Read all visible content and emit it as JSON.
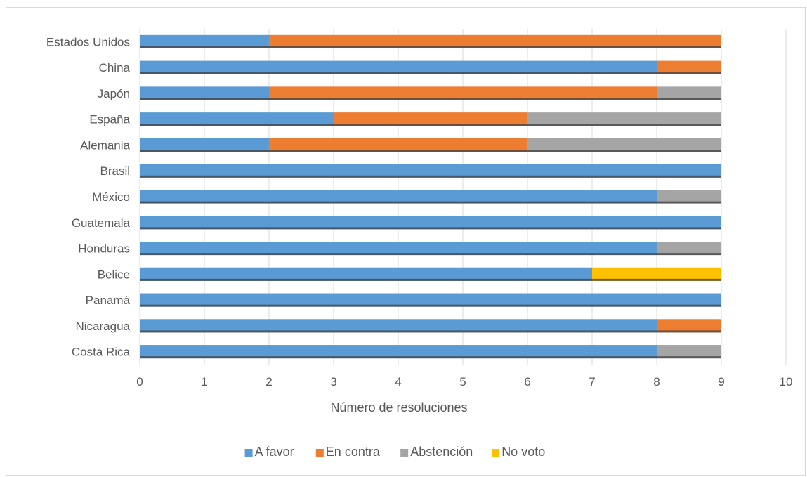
{
  "chart_data": {
    "type": "bar",
    "orientation": "horizontal",
    "stacked": true,
    "title": "",
    "xlabel": "Número de resoluciones",
    "ylabel": "",
    "xlim": [
      0,
      10
    ],
    "xticks": [
      0,
      1,
      2,
      3,
      4,
      5,
      6,
      7,
      8,
      9,
      10
    ],
    "grid": true,
    "legend_position": "bottom",
    "categories": [
      "Costa Rica",
      "Nicaragua",
      "Panamá",
      "Belice",
      "Honduras",
      "Guatemala",
      "México",
      "Brasil",
      "Alemania",
      "España",
      "Japón",
      "China",
      "Estados Unidos"
    ],
    "series": [
      {
        "name": "A favor",
        "color": "#5b9bd5",
        "values": [
          8,
          8,
          9,
          7,
          8,
          9,
          8,
          9,
          2,
          3,
          2,
          8,
          2
        ]
      },
      {
        "name": "En contra",
        "color": "#ed7d31",
        "values": [
          0,
          1,
          0,
          0,
          0,
          0,
          0,
          0,
          4,
          3,
          6,
          1,
          7
        ]
      },
      {
        "name": "Abstención",
        "color": "#a5a5a5",
        "values": [
          1,
          0,
          0,
          0,
          1,
          0,
          1,
          0,
          3,
          3,
          1,
          0,
          0
        ]
      },
      {
        "name": "No voto",
        "color": "#ffc000",
        "values": [
          0,
          0,
          0,
          2,
          0,
          0,
          0,
          0,
          0,
          0,
          0,
          0,
          0
        ]
      }
    ]
  }
}
